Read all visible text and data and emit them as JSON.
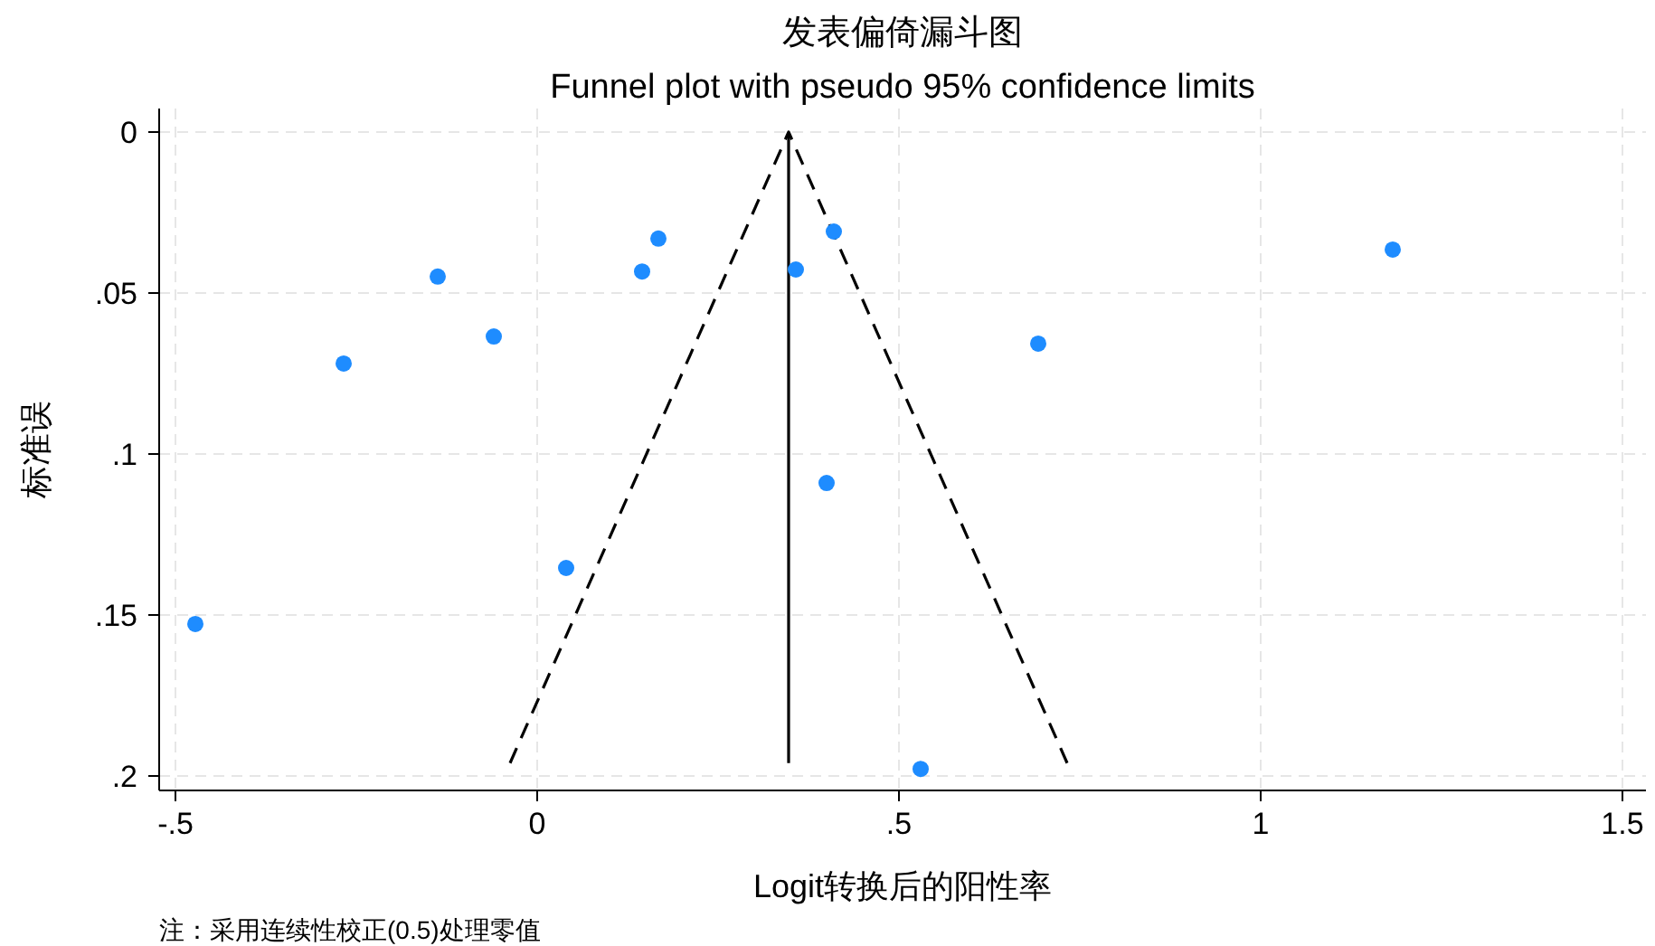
{
  "chart_data": {
    "type": "scatter",
    "title": "发表偏倚漏斗图",
    "subtitle": "Funnel plot with pseudo 95% confidence limits",
    "xlabel": "Logit转换后的阳性率",
    "ylabel": "标准误",
    "annotations": [
      "注：采用连续性校正(0.5)处理零值"
    ],
    "xlim": [
      -0.5225,
      1.5325
    ],
    "ylim": [
      0.2045,
      -0.0073
    ],
    "xticks": [
      {
        "value": -0.5,
        "label": "-.5"
      },
      0,
      {
        "value": 0.5,
        "label": ".5"
      },
      1,
      {
        "value": 1.5,
        "label": "1.5"
      }
    ],
    "yticks": [
      0,
      {
        "value": 0.05,
        "label": ".05"
      },
      {
        "value": 0.1,
        "label": ".1"
      },
      {
        "value": 0.15,
        "label": ".15"
      },
      {
        "value": 0.2,
        "label": ".2"
      }
    ],
    "grid": true,
    "marker": "circle",
    "series": [
      {
        "type": "line",
        "color": "#000000",
        "line_style": "solid",
        "marker": "none",
        "x": [
          0.3475,
          0.3475
        ],
        "values": [
          0,
          0.196
        ]
      },
      {
        "type": "line",
        "color": "#000000",
        "line_style": "dashed",
        "marker": "none",
        "x": [
          -0.0375,
          0.3475,
          0.7325
        ],
        "values": [
          0.196,
          0,
          0.196
        ]
      },
      {
        "type": "scatter",
        "color": "#1e8cff",
        "x": [
          -0.4725,
          -0.2675,
          -0.1375,
          -0.06,
          0.04,
          0.145,
          0.1675,
          0.3575,
          0.41,
          0.4,
          0.53,
          0.6925,
          1.1825
        ],
        "values": [
          0.1528,
          0.0719,
          0.0449,
          0.0635,
          0.1354,
          0.0433,
          0.0331,
          0.0427,
          0.0309,
          0.109,
          0.1978,
          0.0657,
          0.0365
        ]
      }
    ]
  }
}
